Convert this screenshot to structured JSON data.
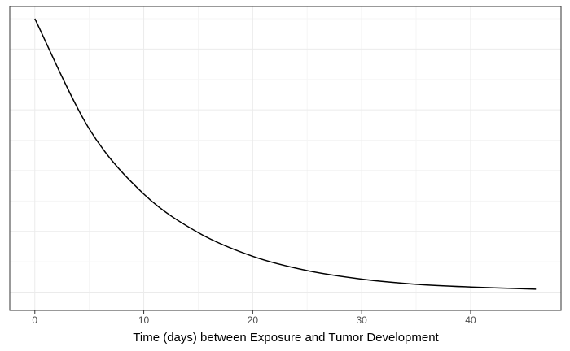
{
  "chart_data": {
    "type": "line",
    "title": "",
    "xlabel": "Time (days) between Exposure and Tumor Development",
    "ylabel": "",
    "xlim": [
      -2.3,
      48.3
    ],
    "ylim": [
      0.04,
      1.04
    ],
    "x_ticks": [
      0,
      10,
      20,
      30,
      40
    ],
    "x_tick_labels": [
      "0",
      "10",
      "20",
      "30",
      "40"
    ],
    "y_axis_labels_shown": false,
    "grid": true,
    "legend": "none",
    "colors": {
      "line": "#000000",
      "grid_major": "#ebebeb",
      "grid_minor": "#f5f5f5",
      "panel_border": "#333333",
      "tick_label": "#4d4d4d"
    },
    "series": [
      {
        "values_x": [
          0,
          5,
          10,
          15,
          20,
          25,
          30,
          35,
          40,
          46
        ],
        "values_y": [
          1.0,
          0.637,
          0.423,
          0.296,
          0.218,
          0.171,
          0.143,
          0.126,
          0.117,
          0.11
        ]
      }
    ]
  }
}
